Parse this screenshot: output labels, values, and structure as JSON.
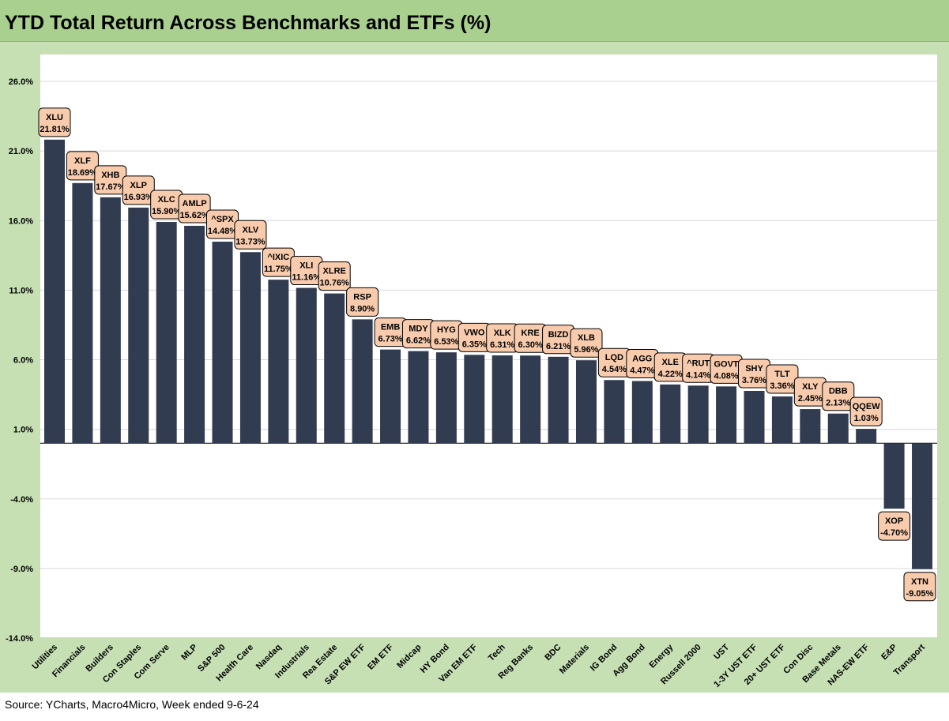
{
  "title": "YTD Total Return Across Benchmarks and ETFs (%)",
  "source": "Source: YCharts, Macro4Micro, Week ended 9-6-24",
  "colors": {
    "bar": "#323c50",
    "label_fill": "#f8cbad",
    "title_bg": "#a9d08e",
    "chart_bg": "#c6e0b4"
  },
  "chart_data": {
    "type": "bar",
    "title": "YTD Total Return Across Benchmarks and ETFs (%)",
    "xlabel": "",
    "ylabel": "",
    "ylim": [
      -14,
      26
    ],
    "yticks": [
      "26.0%",
      "21.0%",
      "16.0%",
      "11.0%",
      "6.0%",
      "1.0%",
      "-4.0%",
      "-9.0%",
      "-14.0%"
    ],
    "grid": true,
    "categories": [
      "Utilities",
      "Financials",
      "Builders",
      "Con Staples",
      "Com Serve",
      "MLP",
      "S&P 500",
      "Health Care",
      "Nasdaq",
      "Industrials",
      "Rea Estate",
      "S&P EW ETF",
      "EM ETF",
      "Midcap",
      "HY Bond",
      "Van EM ETF",
      "Tech",
      "Reg Banks",
      "BDC",
      "Materials",
      "IG Bond",
      "Agg Bond",
      "Energy",
      "Russell 2000",
      "UST",
      "1-3Y UST ETF",
      "20+ UST ETF",
      "Con Disc",
      "Base Metals",
      "NAS-EW ETF",
      "E&P",
      "Transport"
    ],
    "tickers": [
      "XLU",
      "XLF",
      "XHB",
      "XLP",
      "XLC",
      "AMLP",
      "^SPX",
      "XLV",
      "^IXIC",
      "XLI",
      "XLRE",
      "RSP",
      "EMB",
      "MDY",
      "HYG",
      "VWO",
      "XLK",
      "KRE",
      "BIZD",
      "XLB",
      "LQD",
      "AGG",
      "XLE",
      "^RUT",
      "GOVT",
      "SHY",
      "TLT",
      "XLY",
      "DBB",
      "QQEW",
      "XOP",
      "XTN"
    ],
    "values": [
      21.81,
      18.69,
      17.67,
      16.93,
      15.9,
      15.62,
      14.48,
      13.73,
      11.75,
      11.16,
      10.76,
      8.9,
      6.73,
      6.62,
      6.53,
      6.35,
      6.31,
      6.3,
      6.21,
      5.96,
      4.54,
      4.47,
      4.22,
      4.14,
      4.08,
      3.76,
      3.36,
      2.45,
      2.13,
      1.03,
      -4.7,
      -9.05
    ],
    "value_labels": [
      "21.81%",
      "18.69%",
      "17.67%",
      "16.93%",
      "15.90%",
      "15.62%",
      "14.48%",
      "13.73%",
      "11.75%",
      "11.16%",
      "10.76%",
      "8.90%",
      "6.73%",
      "6.62%",
      "6.53%",
      "6.35%",
      "6.31%",
      "6.30%",
      "6.21%",
      "5.96%",
      "4.54%",
      "4.47%",
      "4.22%",
      "4.14%",
      "4.08%",
      "3.76%",
      "3.36%",
      "2.45%",
      "2.13%",
      "1.03%",
      "-4.70%",
      "-9.05%"
    ]
  }
}
